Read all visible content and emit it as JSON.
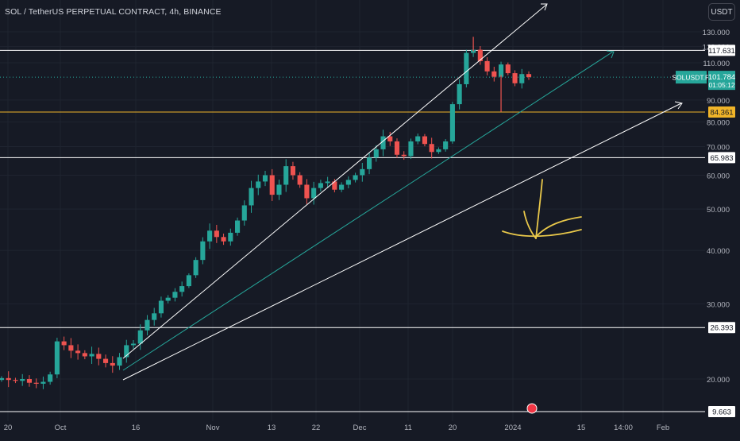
{
  "header": {
    "title": "SOL / TetherUS PERPETUAL CONTRACT, 4h, BINANCE",
    "currency_button": "USDT"
  },
  "chart_data": {
    "type": "candlestick",
    "symbol": "SOLUSDT.P",
    "interval": "4h",
    "exchange": "BINANCE",
    "y_axis": {
      "scale": "log",
      "range": [
        9.3,
        140
      ],
      "ticks": [
        20,
        30,
        40,
        50,
        60,
        70,
        80,
        90,
        110,
        120,
        130
      ],
      "tick_labels": [
        "20.000",
        "30.000",
        "40.000",
        "50.000",
        "60.000",
        "70.000",
        "80.000",
        "90.000",
        "110.000",
        "120.000",
        "130.000"
      ]
    },
    "x_axis": {
      "ticks": [
        "20",
        "Oct",
        "16",
        "Nov",
        "13",
        "22",
        "Dec",
        "11",
        "20",
        "2024",
        "15",
        "14:00",
        "Feb"
      ]
    },
    "last_price": {
      "label": "SOLUSDT.P",
      "value": "101.784",
      "countdown": "01:05:12",
      "color": "#26a69a"
    },
    "levels": [
      {
        "value": 117.631,
        "label": "117.631",
        "color": "#ffffff"
      },
      {
        "value": 84.361,
        "label": "84.361",
        "color": "#f0b429"
      },
      {
        "value": 65.983,
        "label": "65.983",
        "color": "#ffffff"
      },
      {
        "value": 26.393,
        "label": "26.393",
        "color": "#ffffff"
      },
      {
        "value": 9.663,
        "label": "9.663",
        "color": "#ffffff"
      }
    ],
    "close_series": [
      20.1,
      19.9,
      19.8,
      20.0,
      19.6,
      19.5,
      19.7,
      20.5,
      24.5,
      24.0,
      23.3,
      23.0,
      22.6,
      22.9,
      22.3,
      21.8,
      21.5,
      22.5,
      24.0,
      24.2,
      26.0,
      27.5,
      28.5,
      30.5,
      31.0,
      32.0,
      33.0,
      35.0,
      38.0,
      42.0,
      44.5,
      43.0,
      42.0,
      44.0,
      47.0,
      51.0,
      56.0,
      58.0,
      60.0,
      54.0,
      57.0,
      63.0,
      60.0,
      57.0,
      53.0,
      56.0,
      57.5,
      58.0,
      55.5,
      57.0,
      58.5,
      60.0,
      62.0,
      66.0,
      69.0,
      74.0,
      72.0,
      67.0,
      66.5,
      72.0,
      74.0,
      71.0,
      68.0,
      69.0,
      72.0,
      88.0,
      98.0,
      116.0,
      118.0,
      111.0,
      105.0,
      102.0,
      109.0,
      104.0,
      98.5,
      103.5,
      101.8
    ],
    "series_color_up": "#26a69a",
    "series_color_down": "#ef5350",
    "trendline_color": "#26a69a"
  }
}
